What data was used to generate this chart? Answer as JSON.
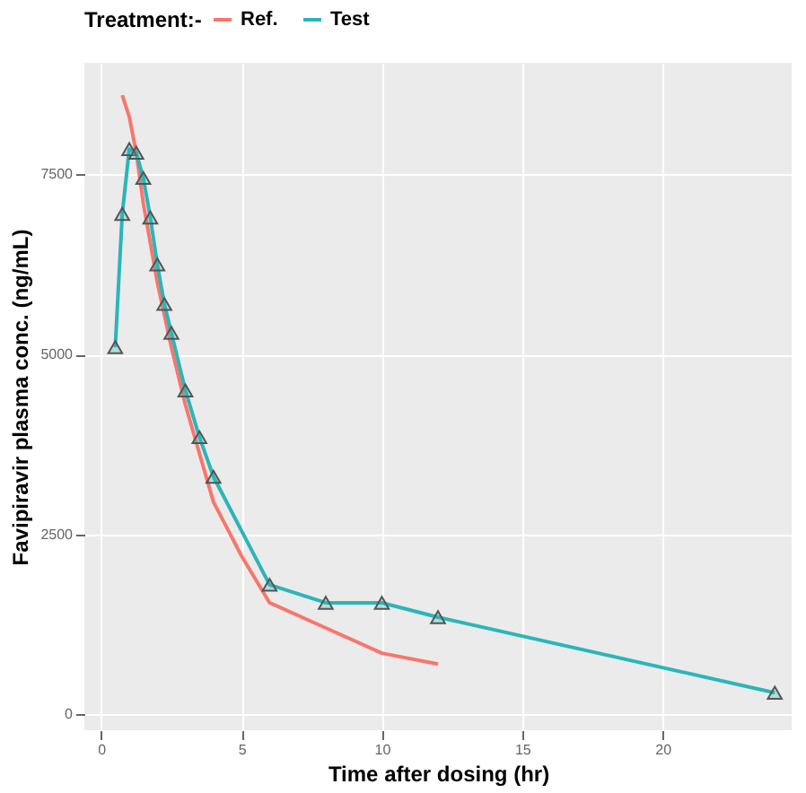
{
  "chart_data": {
    "type": "line",
    "xlabel": "Time after dosing (hr)",
    "ylabel": "Favipiravir plasma conc. (ng/mL)",
    "legend_title": "Treatment:-",
    "xlim": [
      -0.6,
      24.6
    ],
    "xticks": [
      0,
      5,
      10,
      15,
      20
    ],
    "ylim": [
      -220,
      9050
    ],
    "yticks": [
      0,
      2500,
      5000,
      7500
    ],
    "grid": true,
    "legend": "top",
    "line_style": "solid",
    "series": [
      {
        "name": "Ref.",
        "color": "#f8766d",
        "marker": "none",
        "x": [
          0.75,
          1,
          1.25,
          1.5,
          2,
          2.5,
          3,
          4,
          5,
          6,
          8,
          10,
          12
        ],
        "values": [
          8600,
          8300,
          7800,
          7100,
          6000,
          5100,
          4300,
          2950,
          2200,
          1550,
          1200,
          850,
          700
        ]
      },
      {
        "name": "Test",
        "color": "#2bb5b8",
        "marker": "triangle",
        "x": [
          0.5,
          0.75,
          1,
          1.25,
          1.5,
          1.75,
          2,
          2.25,
          2.5,
          3,
          3.5,
          4,
          6,
          8,
          10,
          12,
          24
        ],
        "values": [
          5100,
          6950,
          7850,
          7800,
          7450,
          6900,
          6250,
          5700,
          5300,
          4500,
          3850,
          3300,
          1800,
          1550,
          1550,
          1350,
          300
        ]
      }
    ]
  }
}
